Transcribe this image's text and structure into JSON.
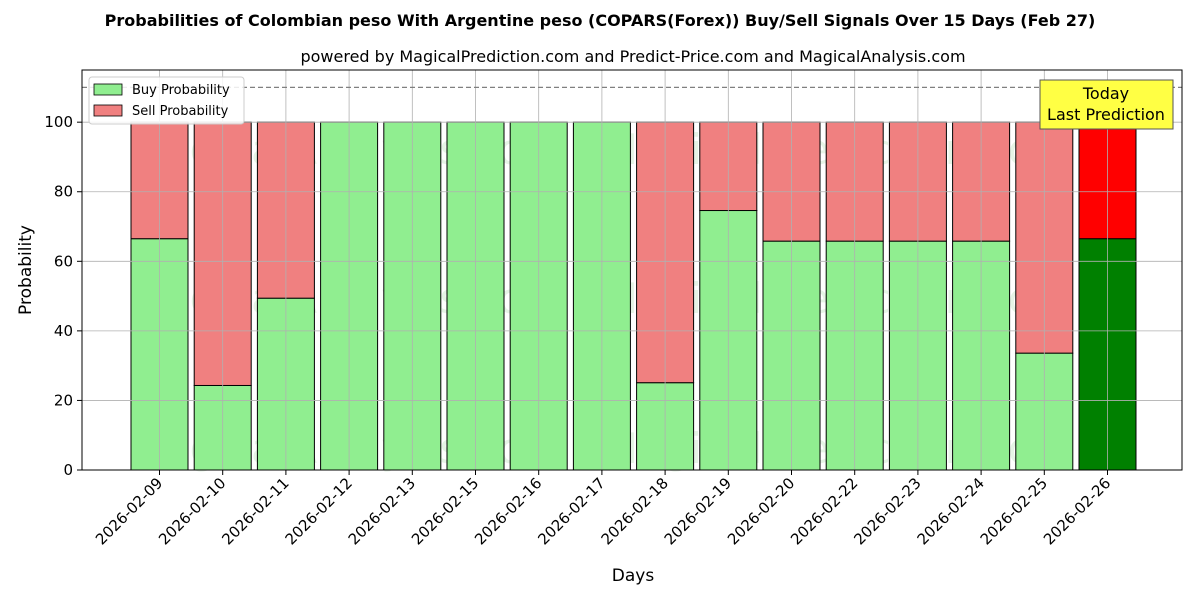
{
  "chart_data": {
    "type": "bar",
    "stacked": true,
    "title": "Probabilities of Colombian peso With Argentine peso (COPARS(Forex)) Buy/Sell Signals Over 15 Days (Feb 27)",
    "subtitle": "powered by MagicalPrediction.com and Predict-Price.com and MagicalAnalysis.com",
    "xlabel": "Days",
    "ylabel": "Probability",
    "ylim": [
      0,
      115
    ],
    "yticks": [
      0,
      20,
      40,
      60,
      80,
      100
    ],
    "reference_line": 110,
    "grid": true,
    "legend_position": "top-left",
    "categories": [
      "2026-02-09",
      "2026-02-10",
      "2026-02-11",
      "2026-02-12",
      "2026-02-13",
      "2026-02-15",
      "2026-02-16",
      "2026-02-17",
      "2026-02-18",
      "2026-02-19",
      "2026-02-20",
      "2026-02-22",
      "2026-02-23",
      "2026-02-24",
      "2026-02-25",
      "2026-02-26"
    ],
    "series": [
      {
        "name": "Buy Probability",
        "color": "#90ee90",
        "values": [
          66.5,
          24.3,
          49.4,
          100,
          100,
          100,
          100,
          100,
          25.1,
          74.6,
          65.8,
          65.8,
          65.8,
          65.8,
          33.6,
          66.5
        ]
      },
      {
        "name": "Sell Probability",
        "color": "#f08080",
        "values": [
          33.5,
          75.7,
          50.6,
          0,
          0,
          0,
          0,
          0,
          74.9,
          25.4,
          34.2,
          34.2,
          34.2,
          34.2,
          66.4,
          33.5
        ]
      }
    ],
    "highlight": {
      "index": 15,
      "buy_color": "#008000",
      "sell_color": "#ff0000"
    },
    "annotation": {
      "lines": [
        "Today",
        "Last Prediction"
      ],
      "background": "#ffff44"
    },
    "watermarks": [
      "MagicalAnalysis.com",
      "MagicalPrediction.com"
    ]
  }
}
